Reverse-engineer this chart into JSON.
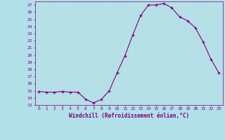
{
  "x": [
    0,
    1,
    2,
    3,
    4,
    5,
    6,
    7,
    8,
    9,
    10,
    11,
    12,
    13,
    14,
    15,
    16,
    17,
    18,
    19,
    20,
    21,
    22,
    23
  ],
  "y": [
    14.9,
    14.8,
    14.8,
    14.9,
    14.8,
    14.8,
    13.8,
    13.3,
    13.8,
    15.0,
    17.5,
    19.9,
    22.8,
    25.5,
    27.0,
    27.0,
    27.2,
    26.6,
    25.3,
    24.8,
    23.8,
    21.8,
    19.4,
    17.5
  ],
  "line_color": "#800080",
  "marker": "+",
  "marker_color": "#800080",
  "background_color": "#b2e0e8",
  "grid_color": "#c8dde0",
  "xlabel": "Windchill (Refroidissement éolien,°C)",
  "xlabel_color": "#800080",
  "tick_color": "#800080",
  "ylim": [
    13,
    27.5
  ],
  "xlim": [
    -0.5,
    23.5
  ],
  "yticks": [
    13,
    14,
    15,
    16,
    17,
    18,
    19,
    20,
    21,
    22,
    23,
    24,
    25,
    26,
    27
  ],
  "xticks": [
    0,
    1,
    2,
    3,
    4,
    5,
    6,
    7,
    8,
    9,
    10,
    11,
    12,
    13,
    14,
    15,
    16,
    17,
    18,
    19,
    20,
    21,
    22,
    23
  ],
  "font_color": "#800080"
}
